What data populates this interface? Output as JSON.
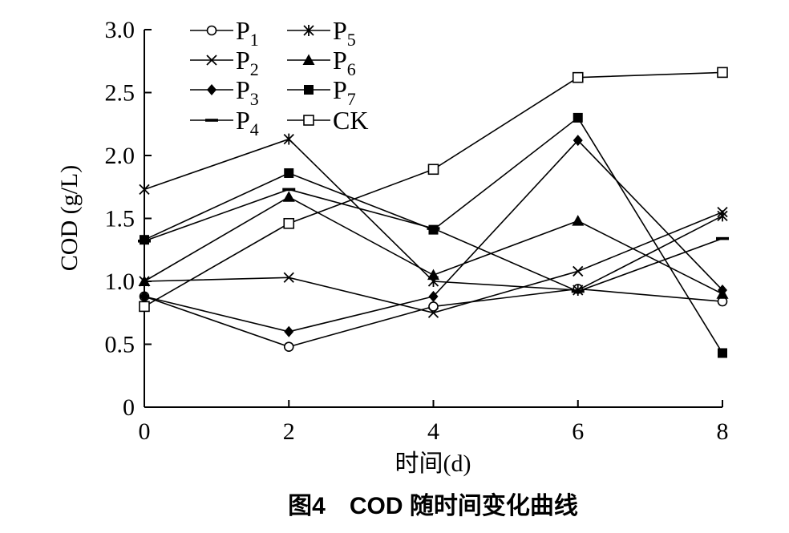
{
  "caption": "图4　COD 随时间变化曲线",
  "chart_data": {
    "type": "line",
    "title": "",
    "xlabel": "时间(d)",
    "ylabel": "COD (g/L)",
    "x": [
      0,
      2,
      4,
      6,
      8
    ],
    "xlim": [
      0,
      8
    ],
    "ylim": [
      0,
      3.0
    ],
    "xticks": [
      "0",
      "2",
      "4",
      "6",
      "8"
    ],
    "yticks": [
      "0",
      "0.5",
      "1.0",
      "1.5",
      "2.0",
      "2.5",
      "3.0"
    ],
    "grid": false,
    "legend_position": "top-left",
    "series": [
      {
        "name": "P",
        "sub": "1",
        "marker": "open-circle",
        "values": [
          0.88,
          0.48,
          0.8,
          0.94,
          0.84
        ]
      },
      {
        "name": "P",
        "sub": "2",
        "marker": "x",
        "values": [
          1.0,
          1.03,
          0.75,
          1.08,
          1.55
        ]
      },
      {
        "name": "P",
        "sub": "3",
        "marker": "filled-diamond",
        "values": [
          0.88,
          0.6,
          0.88,
          2.12,
          0.93
        ]
      },
      {
        "name": "P",
        "sub": "4",
        "marker": "dash",
        "values": [
          1.32,
          1.73,
          1.42,
          0.92,
          1.34
        ]
      },
      {
        "name": "P",
        "sub": "5",
        "marker": "asterisk",
        "values": [
          1.73,
          2.13,
          1.0,
          0.93,
          1.52
        ]
      },
      {
        "name": "P",
        "sub": "6",
        "marker": "filled-triangle",
        "values": [
          1.0,
          1.67,
          1.05,
          1.48,
          0.9
        ]
      },
      {
        "name": "P",
        "sub": "7",
        "marker": "filled-square",
        "values": [
          1.33,
          1.86,
          1.41,
          2.3,
          0.43
        ]
      },
      {
        "name": "CK",
        "sub": "",
        "marker": "open-square",
        "values": [
          0.8,
          1.46,
          1.89,
          2.62,
          2.66
        ]
      }
    ]
  }
}
